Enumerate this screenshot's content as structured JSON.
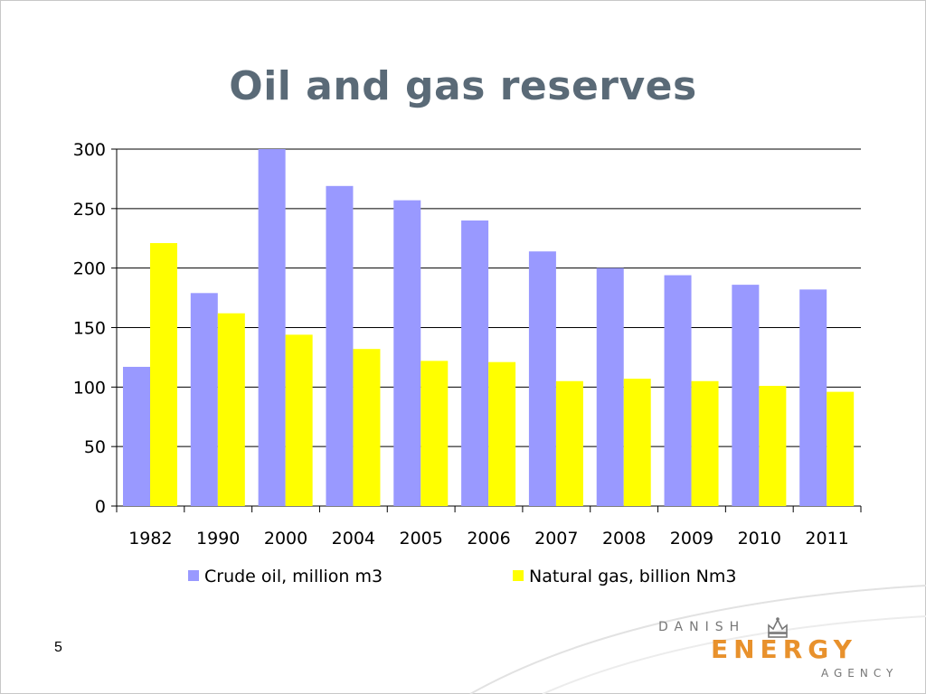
{
  "slide": {
    "title": "Oil and gas reserves",
    "page_number": "5"
  },
  "logo": {
    "line1": "DANISH",
    "line2": "ENERGY",
    "line3": "AGENCY",
    "crown_icon": "crown-icon",
    "color_orange": "#e8912c",
    "color_gray": "#777777"
  },
  "colors": {
    "title": "#5a6a77",
    "crude_oil": "#9999ff",
    "natural_gas": "#ffff00"
  },
  "chart_data": {
    "type": "bar",
    "categories": [
      "1982",
      "1990",
      "2000",
      "2004",
      "2005",
      "2006",
      "2007",
      "2008",
      "2009",
      "2010",
      "2011"
    ],
    "series": [
      {
        "name": "Crude oil, million m3",
        "color": "#9999ff",
        "values": [
          117,
          179,
          300,
          269,
          257,
          240,
          214,
          200,
          194,
          186,
          182
        ]
      },
      {
        "name": "Natural gas, billion Nm3",
        "color": "#ffff00",
        "values": [
          221,
          162,
          144,
          132,
          122,
          121,
          105,
          107,
          105,
          101,
          96
        ]
      }
    ],
    "ylim": [
      0,
      300
    ],
    "yticks": [
      0,
      50,
      100,
      150,
      200,
      250,
      300
    ],
    "grid": true,
    "legend": "bottom"
  }
}
